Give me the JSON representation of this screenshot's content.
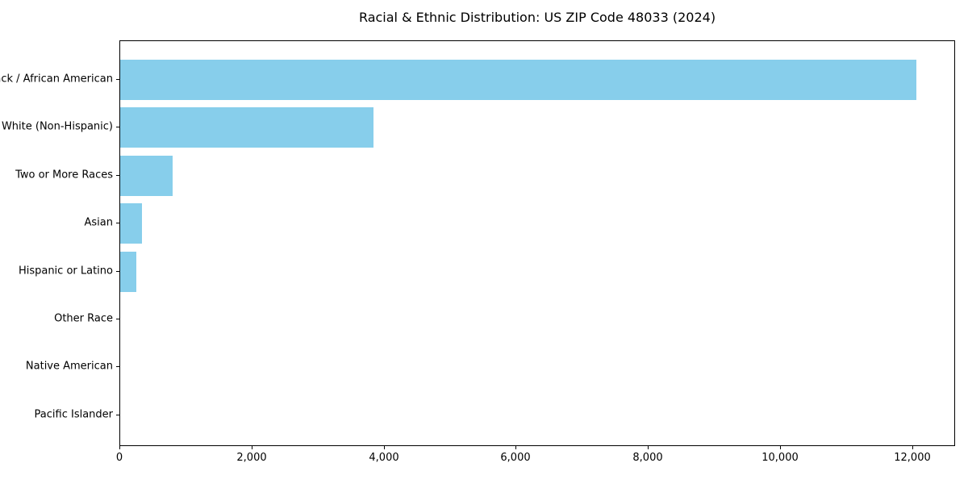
{
  "chart_data": {
    "type": "bar",
    "orientation": "horizontal",
    "title": "Racial & Ethnic Distribution: US ZIP Code 48033 (2024)",
    "categories": [
      "Black / African American",
      "White (Non-Hispanic)",
      "Two or More Races",
      "Asian",
      "Hispanic or Latino",
      "Other Race",
      "Native American",
      "Pacific Islander"
    ],
    "values": [
      12050,
      3830,
      790,
      330,
      245,
      0,
      0,
      0
    ],
    "xlabel": "",
    "ylabel": "",
    "xlim": [
      0,
      12650
    ],
    "x_ticks": [
      {
        "value": 0,
        "label": "0"
      },
      {
        "value": 2000,
        "label": "2,000"
      },
      {
        "value": 4000,
        "label": "4,000"
      },
      {
        "value": 6000,
        "label": "6,000"
      },
      {
        "value": 8000,
        "label": "8,000"
      },
      {
        "value": 10000,
        "label": "10,000"
      },
      {
        "value": 12000,
        "label": "12,000"
      }
    ],
    "bar_color": "#87CEEB",
    "grid": false,
    "legend": null
  }
}
